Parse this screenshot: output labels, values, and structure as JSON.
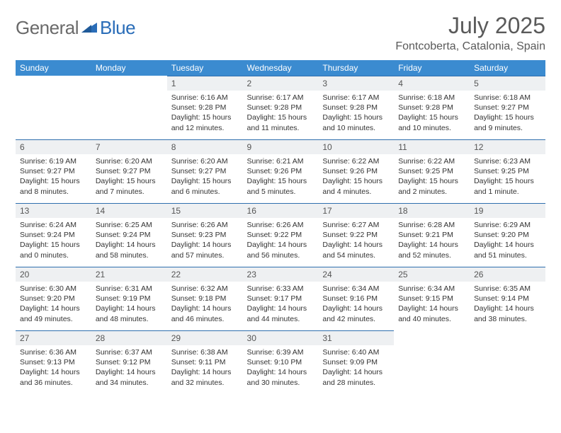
{
  "brand": {
    "word1": "General",
    "word2": "Blue"
  },
  "title": "July 2025",
  "location": "Fontcoberta, Catalonia, Spain",
  "colors": {
    "header_bg": "#3b8bd0",
    "daynum_bg": "#eef0f2",
    "daynum_border": "#2f6fae",
    "text": "#333333",
    "muted": "#5a5a5a"
  },
  "dow": [
    "Sunday",
    "Monday",
    "Tuesday",
    "Wednesday",
    "Thursday",
    "Friday",
    "Saturday"
  ],
  "weeks": [
    [
      null,
      null,
      {
        "n": "1",
        "sr": "6:16 AM",
        "ss": "9:28 PM",
        "dl": "15 hours and 12 minutes."
      },
      {
        "n": "2",
        "sr": "6:17 AM",
        "ss": "9:28 PM",
        "dl": "15 hours and 11 minutes."
      },
      {
        "n": "3",
        "sr": "6:17 AM",
        "ss": "9:28 PM",
        "dl": "15 hours and 10 minutes."
      },
      {
        "n": "4",
        "sr": "6:18 AM",
        "ss": "9:28 PM",
        "dl": "15 hours and 10 minutes."
      },
      {
        "n": "5",
        "sr": "6:18 AM",
        "ss": "9:27 PM",
        "dl": "15 hours and 9 minutes."
      }
    ],
    [
      {
        "n": "6",
        "sr": "6:19 AM",
        "ss": "9:27 PM",
        "dl": "15 hours and 8 minutes."
      },
      {
        "n": "7",
        "sr": "6:20 AM",
        "ss": "9:27 PM",
        "dl": "15 hours and 7 minutes."
      },
      {
        "n": "8",
        "sr": "6:20 AM",
        "ss": "9:27 PM",
        "dl": "15 hours and 6 minutes."
      },
      {
        "n": "9",
        "sr": "6:21 AM",
        "ss": "9:26 PM",
        "dl": "15 hours and 5 minutes."
      },
      {
        "n": "10",
        "sr": "6:22 AM",
        "ss": "9:26 PM",
        "dl": "15 hours and 4 minutes."
      },
      {
        "n": "11",
        "sr": "6:22 AM",
        "ss": "9:25 PM",
        "dl": "15 hours and 2 minutes."
      },
      {
        "n": "12",
        "sr": "6:23 AM",
        "ss": "9:25 PM",
        "dl": "15 hours and 1 minute."
      }
    ],
    [
      {
        "n": "13",
        "sr": "6:24 AM",
        "ss": "9:24 PM",
        "dl": "15 hours and 0 minutes."
      },
      {
        "n": "14",
        "sr": "6:25 AM",
        "ss": "9:24 PM",
        "dl": "14 hours and 58 minutes."
      },
      {
        "n": "15",
        "sr": "6:26 AM",
        "ss": "9:23 PM",
        "dl": "14 hours and 57 minutes."
      },
      {
        "n": "16",
        "sr": "6:26 AM",
        "ss": "9:22 PM",
        "dl": "14 hours and 56 minutes."
      },
      {
        "n": "17",
        "sr": "6:27 AM",
        "ss": "9:22 PM",
        "dl": "14 hours and 54 minutes."
      },
      {
        "n": "18",
        "sr": "6:28 AM",
        "ss": "9:21 PM",
        "dl": "14 hours and 52 minutes."
      },
      {
        "n": "19",
        "sr": "6:29 AM",
        "ss": "9:20 PM",
        "dl": "14 hours and 51 minutes."
      }
    ],
    [
      {
        "n": "20",
        "sr": "6:30 AM",
        "ss": "9:20 PM",
        "dl": "14 hours and 49 minutes."
      },
      {
        "n": "21",
        "sr": "6:31 AM",
        "ss": "9:19 PM",
        "dl": "14 hours and 48 minutes."
      },
      {
        "n": "22",
        "sr": "6:32 AM",
        "ss": "9:18 PM",
        "dl": "14 hours and 46 minutes."
      },
      {
        "n": "23",
        "sr": "6:33 AM",
        "ss": "9:17 PM",
        "dl": "14 hours and 44 minutes."
      },
      {
        "n": "24",
        "sr": "6:34 AM",
        "ss": "9:16 PM",
        "dl": "14 hours and 42 minutes."
      },
      {
        "n": "25",
        "sr": "6:34 AM",
        "ss": "9:15 PM",
        "dl": "14 hours and 40 minutes."
      },
      {
        "n": "26",
        "sr": "6:35 AM",
        "ss": "9:14 PM",
        "dl": "14 hours and 38 minutes."
      }
    ],
    [
      {
        "n": "27",
        "sr": "6:36 AM",
        "ss": "9:13 PM",
        "dl": "14 hours and 36 minutes."
      },
      {
        "n": "28",
        "sr": "6:37 AM",
        "ss": "9:12 PM",
        "dl": "14 hours and 34 minutes."
      },
      {
        "n": "29",
        "sr": "6:38 AM",
        "ss": "9:11 PM",
        "dl": "14 hours and 32 minutes."
      },
      {
        "n": "30",
        "sr": "6:39 AM",
        "ss": "9:10 PM",
        "dl": "14 hours and 30 minutes."
      },
      {
        "n": "31",
        "sr": "6:40 AM",
        "ss": "9:09 PM",
        "dl": "14 hours and 28 minutes."
      },
      null,
      null
    ]
  ],
  "labels": {
    "sunrise": "Sunrise:",
    "sunset": "Sunset:",
    "daylight": "Daylight:"
  }
}
